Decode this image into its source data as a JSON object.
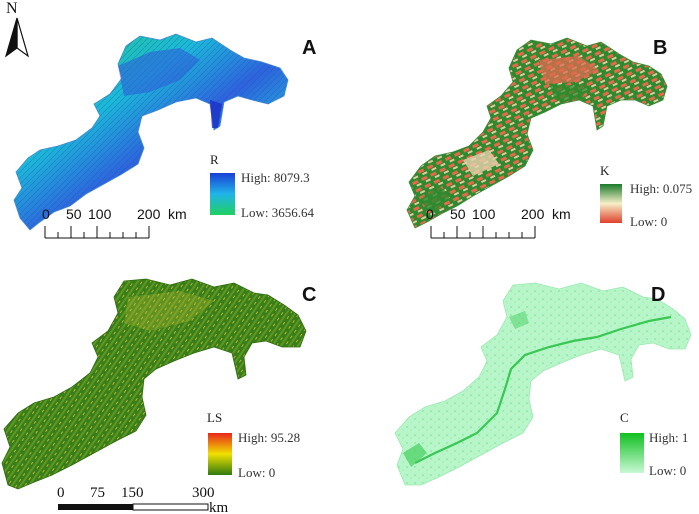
{
  "north_arrow": {
    "label": "N"
  },
  "panels": {
    "a": {
      "letter": "A",
      "legend": {
        "title": "R",
        "high": "High: 8079.3",
        "low": "Low: 3656.64",
        "high_color": "#1a3fd6",
        "mid_color": "#1fb4e8",
        "low_color": "#20d060"
      },
      "scale": {
        "ticks": [
          "0",
          "50",
          "100",
          "200"
        ],
        "unit": "km"
      }
    },
    "b": {
      "letter": "B",
      "legend": {
        "title": "K",
        "high": "High: 0.075",
        "low": "Low: 0",
        "high_color": "#1a7a2a",
        "mid_color": "#f6efc8",
        "low_color": "#e0402c"
      },
      "scale": {
        "ticks": [
          "0",
          "50",
          "100",
          "200"
        ],
        "unit": "km"
      }
    },
    "c": {
      "letter": "C",
      "legend": {
        "title": "LS",
        "high": "High: 95.28",
        "low": "Low: 0",
        "high_color": "#e8261c",
        "mid_color": "#f0e000",
        "low_color": "#2f7a10"
      },
      "scale": {
        "ticks": [
          "0",
          "75",
          "150",
          "300"
        ],
        "unit": "km"
      }
    },
    "d": {
      "letter": "D",
      "legend": {
        "title": "C",
        "high": "High: 1",
        "low": "Low: 0",
        "high_color": "#10c020",
        "low_color": "#c8f8d4"
      }
    }
  }
}
